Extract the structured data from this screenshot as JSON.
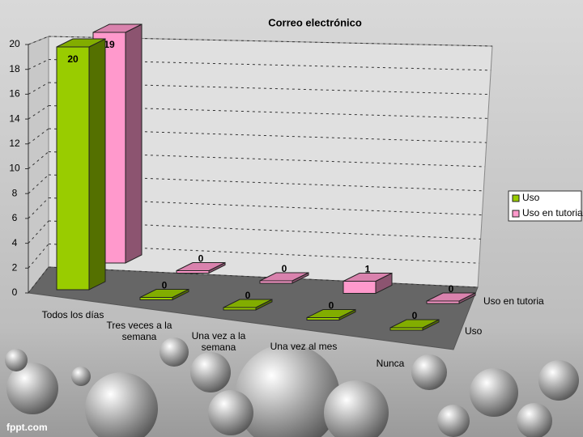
{
  "chart_data": {
    "type": "bar3d",
    "title": "Correo electrónico",
    "categories": [
      "Todos los días",
      "Tres veces a la semana",
      "Una vez a la semana",
      "Una vez al mes",
      "Nunca"
    ],
    "series": [
      {
        "name": "Uso",
        "color": "#99cc00",
        "values": [
          20,
          0,
          0,
          0,
          0
        ]
      },
      {
        "name": "Uso en tutoria",
        "color": "#ff99cc",
        "values": [
          19,
          0,
          0,
          1,
          0
        ]
      }
    ],
    "ylim": [
      0,
      20
    ],
    "yticks": [
      0,
      2,
      4,
      6,
      8,
      10,
      12,
      14,
      16,
      18,
      20
    ],
    "grid": true,
    "legend": "right"
  },
  "watermark": "fppt.com"
}
